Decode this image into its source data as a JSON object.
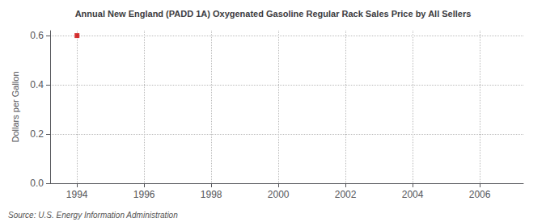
{
  "chart_data": {
    "type": "scatter",
    "title": "Annual New England (PADD 1A) Oxygenated Gasoline Regular Rack Sales Price by All Sellers",
    "ylabel": "Dollars per Gallon",
    "annotations": [
      "Source: U.S. Energy Information Administration"
    ],
    "x": [
      1994
    ],
    "values": [
      0.6
    ],
    "color": "#cc0000",
    "marker": "square",
    "xlim": [
      1993.2,
      2007.3
    ],
    "xticks": [
      1994,
      1996,
      1998,
      2000,
      2002,
      2004,
      2006
    ],
    "ylim": [
      0.0,
      0.62
    ],
    "yticks": [
      {
        "value": 0.0,
        "label": "0.0"
      },
      0.2,
      0.4,
      0.6
    ],
    "grid": true
  }
}
